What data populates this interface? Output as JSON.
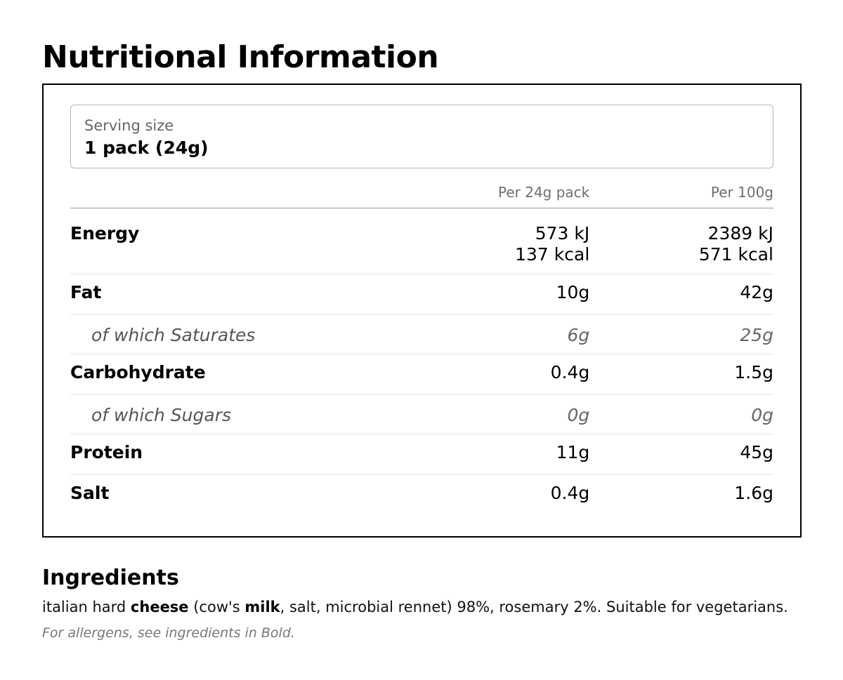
{
  "title": "Nutritional Information",
  "serving": {
    "label": "Serving size",
    "value": "1 pack (24g)"
  },
  "table": {
    "headers": {
      "per_pack": "Per 24g pack",
      "per_100g": "Per 100g"
    },
    "rows": [
      {
        "name": "Energy",
        "type": "main",
        "per_pack": [
          "573 kJ",
          "137 kcal"
        ],
        "per_100g": [
          "2389 kJ",
          "571 kcal"
        ]
      },
      {
        "name": "Fat",
        "type": "main",
        "per_pack": [
          "10g"
        ],
        "per_100g": [
          "42g"
        ]
      },
      {
        "name": "of which Saturates",
        "type": "sub",
        "per_pack": [
          "6g"
        ],
        "per_100g": [
          "25g"
        ]
      },
      {
        "name": "Carbohydrate",
        "type": "main",
        "per_pack": [
          "0.4g"
        ],
        "per_100g": [
          "1.5g"
        ]
      },
      {
        "name": "of which Sugars",
        "type": "sub",
        "per_pack": [
          "0g"
        ],
        "per_100g": [
          "0g"
        ]
      },
      {
        "name": "Protein",
        "type": "main",
        "per_pack": [
          "11g"
        ],
        "per_100g": [
          "45g"
        ]
      },
      {
        "name": "Salt",
        "type": "main",
        "per_pack": [
          "0.4g"
        ],
        "per_100g": [
          "1.6g"
        ]
      }
    ]
  },
  "ingredients": {
    "heading": "Ingredients",
    "parts": [
      {
        "text": "italian hard ",
        "bold": false
      },
      {
        "text": "cheese",
        "bold": true
      },
      {
        "text": " (cow's ",
        "bold": false
      },
      {
        "text": "milk",
        "bold": true
      },
      {
        "text": ", salt, microbial rennet) 98%, rosemary 2%. Suitable for vegetarians.",
        "bold": false
      }
    ],
    "allergen_note": "For allergens, see ingredients in Bold."
  }
}
